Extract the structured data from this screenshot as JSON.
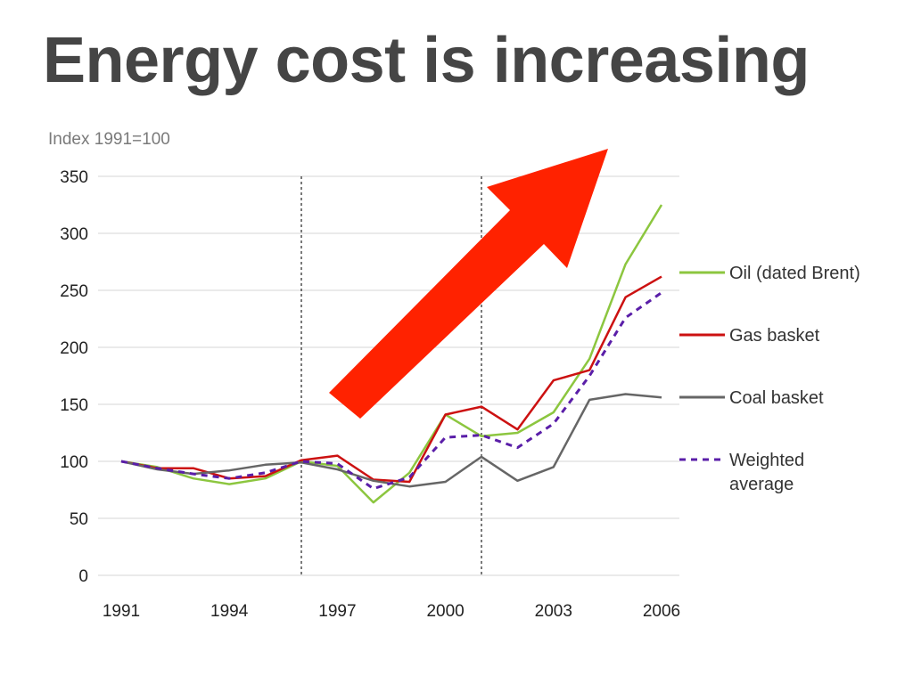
{
  "slide": {
    "title": "Energy cost is increasing"
  },
  "chart_data": {
    "type": "line",
    "title": "",
    "index_label": "Index 1991=100",
    "xlabel": "",
    "ylabel": "",
    "ylim": [
      0,
      350
    ],
    "xlim": [
      1991,
      2006
    ],
    "yticks": [
      0,
      50,
      100,
      150,
      200,
      250,
      300,
      350
    ],
    "xticks": [
      1991,
      1994,
      1997,
      2000,
      2003,
      2006
    ],
    "x": [
      1991,
      1992,
      1993,
      1994,
      1995,
      1996,
      1997,
      1998,
      1999,
      2000,
      2001,
      2002,
      2003,
      2004,
      2005,
      2006
    ],
    "grid": true,
    "reference_lines_x": [
      1996,
      2001
    ],
    "legend_position": "right",
    "series": [
      {
        "name": "Oil (dated Brent)",
        "color": "#8cc63f",
        "dashed": false,
        "values": [
          100,
          95,
          85,
          80,
          85,
          100,
          96,
          64,
          90,
          141,
          122,
          125,
          143,
          190,
          273,
          325
        ]
      },
      {
        "name": "Gas basket",
        "color": "#cc1111",
        "dashed": false,
        "values": [
          100,
          94,
          94,
          85,
          87,
          101,
          105,
          84,
          82,
          141,
          148,
          128,
          171,
          180,
          244,
          262
        ]
      },
      {
        "name": "Coal basket",
        "color": "#666666",
        "dashed": false,
        "values": [
          100,
          93,
          89,
          92,
          97,
          99,
          93,
          83,
          78,
          82,
          104,
          83,
          95,
          154,
          159,
          156
        ]
      },
      {
        "name": "Weighted average",
        "legend_lines": [
          "Weighted",
          "average"
        ],
        "color": "#5a1ea8",
        "dashed": true,
        "values": [
          100,
          94,
          89,
          85,
          90,
          100,
          98,
          76,
          86,
          121,
          123,
          112,
          133,
          175,
          226,
          248
        ]
      }
    ],
    "annotation": {
      "type": "arrow",
      "direction": "up-right",
      "color": "#ff2200"
    }
  }
}
